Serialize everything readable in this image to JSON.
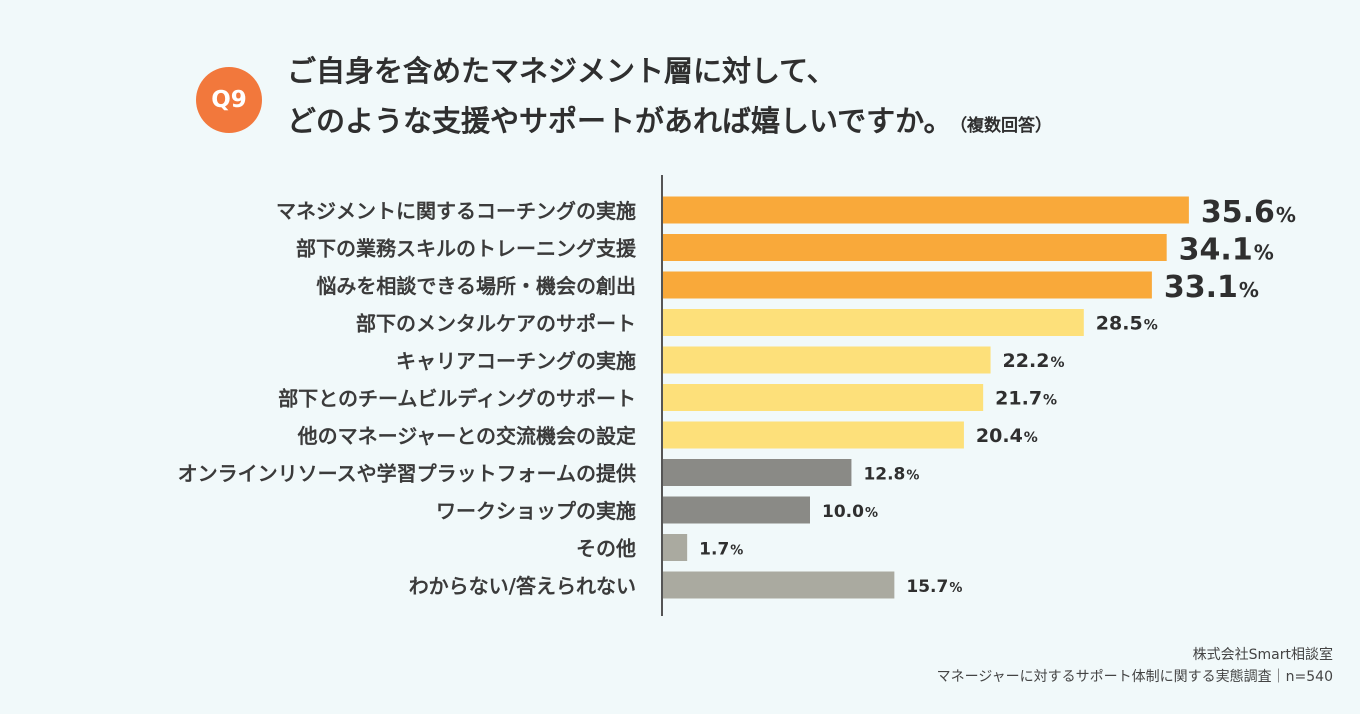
{
  "question": {
    "badge": "Q9",
    "title_line1": "ご自身を含めたマネジメント層に対して、",
    "title_line2": "どのような支援やサポートがあれば嬉しいですか。",
    "note": "（複数回答）"
  },
  "chart_data": {
    "type": "bar",
    "orientation": "horizontal",
    "unit": "%",
    "xlim": [
      0,
      40
    ],
    "categories": [
      "マネジメントに関するコーチングの実施",
      "部下の業務スキルのトレーニング支援",
      "悩みを相談できる場所・機会の創出",
      "部下のメンタルケアのサポート",
      "キャリアコーチングの実施",
      "部下とのチームビルディングのサポート",
      "他のマネージャーとの交流機会の設定",
      "オンラインリソースや学習プラットフォームの提供",
      "ワークショップの実施",
      "その他",
      "わからない/答えられない"
    ],
    "values": [
      35.6,
      34.1,
      33.1,
      28.5,
      22.2,
      21.7,
      20.4,
      12.8,
      10.0,
      1.7,
      15.7
    ],
    "value_labels": [
      "35.6",
      "34.1",
      "33.1",
      "28.5",
      "22.2",
      "21.7",
      "20.4",
      "12.8",
      "10.0",
      "1.7",
      "15.7"
    ],
    "tiers": [
      "top",
      "top",
      "top",
      "mid",
      "mid",
      "mid",
      "mid",
      "low",
      "low",
      "other",
      "other"
    ]
  },
  "colors": {
    "top": "#f9a93a",
    "mid": "#fde07a",
    "low": "#8a8a86",
    "other": "#aaaaa0",
    "axis": "#555555",
    "badge": "#f2783c"
  },
  "source": {
    "company": "株式会社Smart相談室",
    "survey": "マネージャーに対するサポート体制に関する実態調査｜n=540"
  }
}
